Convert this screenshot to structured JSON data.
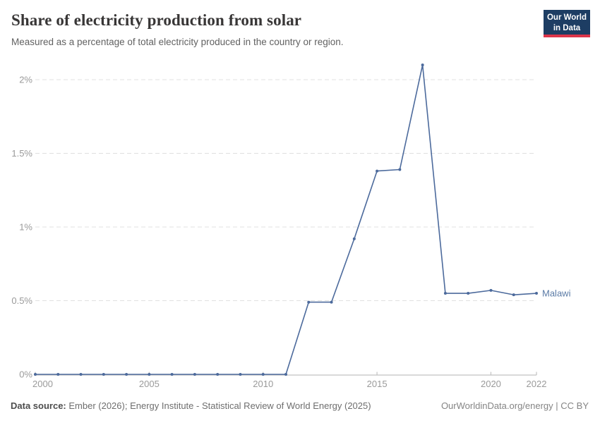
{
  "header": {
    "title": "Share of electricity production from solar",
    "subtitle": "Measured as a percentage of total electricity produced in the country or region.",
    "logo": {
      "line1": "Our World",
      "line2": "in Data"
    }
  },
  "chart_data": {
    "type": "line",
    "title": "Share of electricity production from solar",
    "xlabel": "",
    "ylabel": "",
    "grid": "horizontal-dashed",
    "legend_position": "end-of-line-label",
    "xlim": [
      2000,
      2022
    ],
    "ylim": [
      0,
      2.15
    ],
    "x": [
      2000,
      2001,
      2002,
      2003,
      2004,
      2005,
      2006,
      2007,
      2008,
      2009,
      2010,
      2011,
      2012,
      2013,
      2014,
      2015,
      2016,
      2017,
      2018,
      2019,
      2020,
      2021,
      2022
    ],
    "series": [
      {
        "name": "Malawi",
        "color": "#4c6a9c",
        "values": [
          0,
          0,
          0,
          0,
          0,
          0,
          0,
          0,
          0,
          0,
          0,
          0,
          0.49,
          0.49,
          0.92,
          1.38,
          1.39,
          2.1,
          0.55,
          0.55,
          0.57,
          0.54,
          0.55
        ]
      }
    ],
    "x_ticks": [
      2000,
      2005,
      2010,
      2015,
      2020,
      2022
    ],
    "y_ticks": [
      {
        "value": 0,
        "label": "0%"
      },
      {
        "value": 0.5,
        "label": "0.5%"
      },
      {
        "value": 1,
        "label": "1%"
      },
      {
        "value": 1.5,
        "label": "1.5%"
      },
      {
        "value": 2,
        "label": "2%"
      }
    ],
    "entity_label": "Malawi"
  },
  "footer": {
    "source_label": "Data source:",
    "source_text": " Ember (2026); Energy Institute - Statistical Review of World Energy (2025)",
    "license_text": "OurWorldinData.org/energy | CC BY"
  },
  "colors": {
    "line": "#4c6a9c",
    "entity_label": "#5b7ba6",
    "gridline": "#e0e0e0",
    "axis": "#c2c2c2",
    "tick_text": "#9a9a9a",
    "logo_bg": "#1d3d63",
    "logo_stripe": "#dc354a"
  }
}
